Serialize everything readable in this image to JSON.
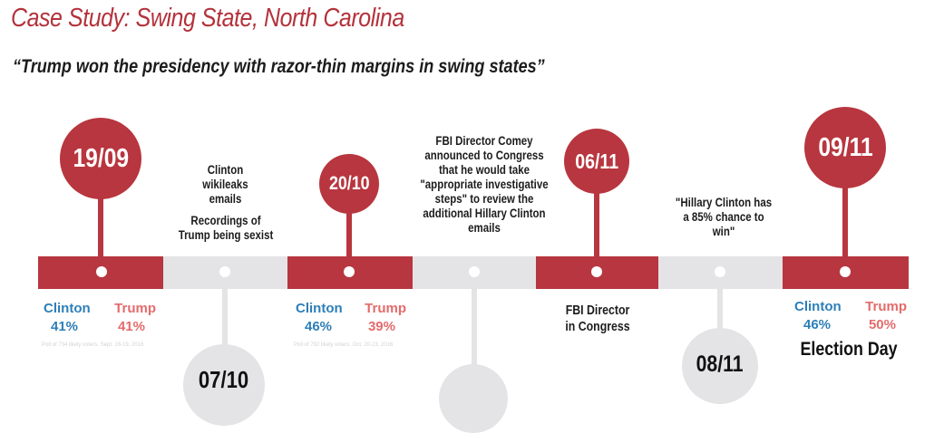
{
  "title": "Case Study: Swing State, North Carolina",
  "subtitle": "“Trump won the presidency with razor-thin margins in swing states”",
  "dates": {
    "d1": "19/09",
    "d2": "07/10",
    "d3": "20/10",
    "d5": "06/11",
    "d6": "08/11",
    "d7": "09/11"
  },
  "events": {
    "e2_line1": "Clinton wikileaks emails",
    "e2_line2": "Recordings of Trump being sexist",
    "e4": "FBI Director Comey announced to Congress that he would take \"appropriate investigative steps\" to review the additional Hillary Clinton emails",
    "e5": "FBI Director in Congress",
    "e6": "\"Hillary Clinton has a 85% chance to win\"",
    "e7": "Election Day"
  },
  "polls": [
    {
      "clinton_label": "Clinton",
      "trump_label": "Trump",
      "clinton": "41%",
      "trump": "41%",
      "source": "Poll of 734 likely voters. Sept. 16-19, 2016"
    },
    {
      "clinton_label": "Clinton",
      "trump_label": "Trump",
      "clinton": "46%",
      "trump": "39%",
      "source": "Poll of 792 likely voters. Oct. 20-23, 2016"
    },
    {
      "clinton_label": "Clinton",
      "trump_label": "Trump",
      "clinton": "46%",
      "trump": "50%"
    }
  ],
  "colors": {
    "accent_red": "#b8363f",
    "timeline_gray": "#e4e4e6",
    "clinton_blue": "#2d7fb8",
    "trump_pink": "#e46b6b"
  }
}
